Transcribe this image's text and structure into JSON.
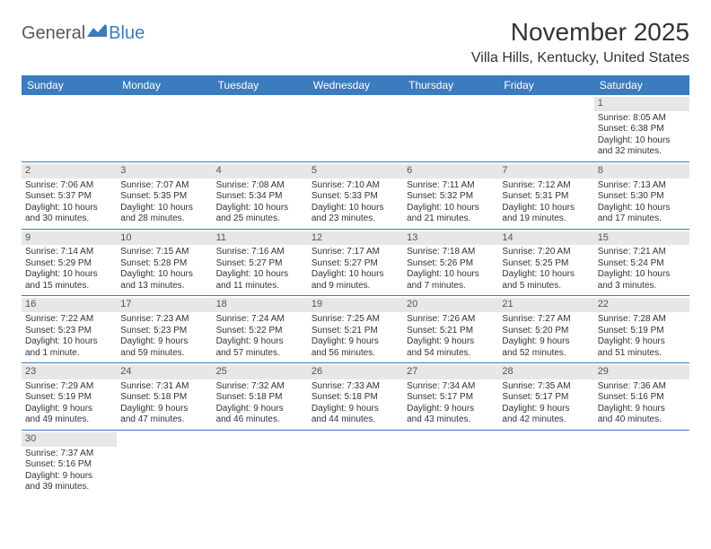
{
  "logo": {
    "part1": "General",
    "part2": "Blue",
    "iconColor": "#3b7bbf"
  },
  "title": "November 2025",
  "location": "Villa Hills, Kentucky, United States",
  "headerColor": "#3b7bbf",
  "headerTextColor": "#ffffff",
  "dayNumBg": "#e7e7e7",
  "borderColor": "#3b7bbf",
  "weekdays": [
    "Sunday",
    "Monday",
    "Tuesday",
    "Wednesday",
    "Thursday",
    "Friday",
    "Saturday"
  ],
  "weeks": [
    [
      null,
      null,
      null,
      null,
      null,
      null,
      {
        "n": "1",
        "sunrise": "Sunrise: 8:05 AM",
        "sunset": "Sunset: 6:38 PM",
        "d1": "Daylight: 10 hours",
        "d2": "and 32 minutes."
      }
    ],
    [
      {
        "n": "2",
        "sunrise": "Sunrise: 7:06 AM",
        "sunset": "Sunset: 5:37 PM",
        "d1": "Daylight: 10 hours",
        "d2": "and 30 minutes."
      },
      {
        "n": "3",
        "sunrise": "Sunrise: 7:07 AM",
        "sunset": "Sunset: 5:35 PM",
        "d1": "Daylight: 10 hours",
        "d2": "and 28 minutes."
      },
      {
        "n": "4",
        "sunrise": "Sunrise: 7:08 AM",
        "sunset": "Sunset: 5:34 PM",
        "d1": "Daylight: 10 hours",
        "d2": "and 25 minutes."
      },
      {
        "n": "5",
        "sunrise": "Sunrise: 7:10 AM",
        "sunset": "Sunset: 5:33 PM",
        "d1": "Daylight: 10 hours",
        "d2": "and 23 minutes."
      },
      {
        "n": "6",
        "sunrise": "Sunrise: 7:11 AM",
        "sunset": "Sunset: 5:32 PM",
        "d1": "Daylight: 10 hours",
        "d2": "and 21 minutes."
      },
      {
        "n": "7",
        "sunrise": "Sunrise: 7:12 AM",
        "sunset": "Sunset: 5:31 PM",
        "d1": "Daylight: 10 hours",
        "d2": "and 19 minutes."
      },
      {
        "n": "8",
        "sunrise": "Sunrise: 7:13 AM",
        "sunset": "Sunset: 5:30 PM",
        "d1": "Daylight: 10 hours",
        "d2": "and 17 minutes."
      }
    ],
    [
      {
        "n": "9",
        "sunrise": "Sunrise: 7:14 AM",
        "sunset": "Sunset: 5:29 PM",
        "d1": "Daylight: 10 hours",
        "d2": "and 15 minutes."
      },
      {
        "n": "10",
        "sunrise": "Sunrise: 7:15 AM",
        "sunset": "Sunset: 5:28 PM",
        "d1": "Daylight: 10 hours",
        "d2": "and 13 minutes."
      },
      {
        "n": "11",
        "sunrise": "Sunrise: 7:16 AM",
        "sunset": "Sunset: 5:27 PM",
        "d1": "Daylight: 10 hours",
        "d2": "and 11 minutes."
      },
      {
        "n": "12",
        "sunrise": "Sunrise: 7:17 AM",
        "sunset": "Sunset: 5:27 PM",
        "d1": "Daylight: 10 hours",
        "d2": "and 9 minutes."
      },
      {
        "n": "13",
        "sunrise": "Sunrise: 7:18 AM",
        "sunset": "Sunset: 5:26 PM",
        "d1": "Daylight: 10 hours",
        "d2": "and 7 minutes."
      },
      {
        "n": "14",
        "sunrise": "Sunrise: 7:20 AM",
        "sunset": "Sunset: 5:25 PM",
        "d1": "Daylight: 10 hours",
        "d2": "and 5 minutes."
      },
      {
        "n": "15",
        "sunrise": "Sunrise: 7:21 AM",
        "sunset": "Sunset: 5:24 PM",
        "d1": "Daylight: 10 hours",
        "d2": "and 3 minutes."
      }
    ],
    [
      {
        "n": "16",
        "sunrise": "Sunrise: 7:22 AM",
        "sunset": "Sunset: 5:23 PM",
        "d1": "Daylight: 10 hours",
        "d2": "and 1 minute."
      },
      {
        "n": "17",
        "sunrise": "Sunrise: 7:23 AM",
        "sunset": "Sunset: 5:23 PM",
        "d1": "Daylight: 9 hours",
        "d2": "and 59 minutes."
      },
      {
        "n": "18",
        "sunrise": "Sunrise: 7:24 AM",
        "sunset": "Sunset: 5:22 PM",
        "d1": "Daylight: 9 hours",
        "d2": "and 57 minutes."
      },
      {
        "n": "19",
        "sunrise": "Sunrise: 7:25 AM",
        "sunset": "Sunset: 5:21 PM",
        "d1": "Daylight: 9 hours",
        "d2": "and 56 minutes."
      },
      {
        "n": "20",
        "sunrise": "Sunrise: 7:26 AM",
        "sunset": "Sunset: 5:21 PM",
        "d1": "Daylight: 9 hours",
        "d2": "and 54 minutes."
      },
      {
        "n": "21",
        "sunrise": "Sunrise: 7:27 AM",
        "sunset": "Sunset: 5:20 PM",
        "d1": "Daylight: 9 hours",
        "d2": "and 52 minutes."
      },
      {
        "n": "22",
        "sunrise": "Sunrise: 7:28 AM",
        "sunset": "Sunset: 5:19 PM",
        "d1": "Daylight: 9 hours",
        "d2": "and 51 minutes."
      }
    ],
    [
      {
        "n": "23",
        "sunrise": "Sunrise: 7:29 AM",
        "sunset": "Sunset: 5:19 PM",
        "d1": "Daylight: 9 hours",
        "d2": "and 49 minutes."
      },
      {
        "n": "24",
        "sunrise": "Sunrise: 7:31 AM",
        "sunset": "Sunset: 5:18 PM",
        "d1": "Daylight: 9 hours",
        "d2": "and 47 minutes."
      },
      {
        "n": "25",
        "sunrise": "Sunrise: 7:32 AM",
        "sunset": "Sunset: 5:18 PM",
        "d1": "Daylight: 9 hours",
        "d2": "and 46 minutes."
      },
      {
        "n": "26",
        "sunrise": "Sunrise: 7:33 AM",
        "sunset": "Sunset: 5:18 PM",
        "d1": "Daylight: 9 hours",
        "d2": "and 44 minutes."
      },
      {
        "n": "27",
        "sunrise": "Sunrise: 7:34 AM",
        "sunset": "Sunset: 5:17 PM",
        "d1": "Daylight: 9 hours",
        "d2": "and 43 minutes."
      },
      {
        "n": "28",
        "sunrise": "Sunrise: 7:35 AM",
        "sunset": "Sunset: 5:17 PM",
        "d1": "Daylight: 9 hours",
        "d2": "and 42 minutes."
      },
      {
        "n": "29",
        "sunrise": "Sunrise: 7:36 AM",
        "sunset": "Sunset: 5:16 PM",
        "d1": "Daylight: 9 hours",
        "d2": "and 40 minutes."
      }
    ],
    [
      {
        "n": "30",
        "sunrise": "Sunrise: 7:37 AM",
        "sunset": "Sunset: 5:16 PM",
        "d1": "Daylight: 9 hours",
        "d2": "and 39 minutes."
      },
      null,
      null,
      null,
      null,
      null,
      null
    ]
  ]
}
